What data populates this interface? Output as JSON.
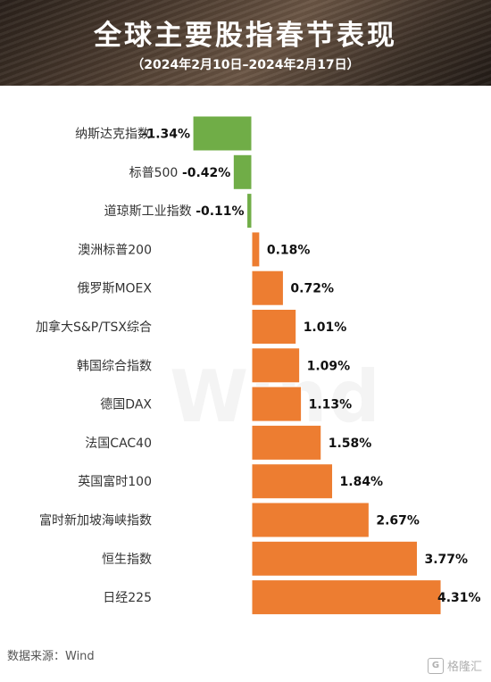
{
  "header": {
    "title": "全球主要股指春节表现",
    "subtitle": "（2024年2月10日–2024年2月17日）"
  },
  "watermark": "Wind",
  "footer": {
    "source": "数据来源：Wind",
    "logo_text": "格隆汇"
  },
  "colors": {
    "positive": "#ED7D31",
    "negative": "#70AD47",
    "positive_border": "#d9d9d9"
  },
  "chart_data": {
    "type": "bar",
    "orientation": "horizontal",
    "categories": [
      "纳斯达克指数",
      "标普500",
      "道琼斯工业指数",
      "澳洲标普200",
      "俄罗斯MOEX",
      "加拿大S&P/TSX综合",
      "韩国综合指数",
      "德国DAX",
      "法国CAC40",
      "英国富时100",
      "富时新加坡海峡指数",
      "恒生指数",
      "日经225"
    ],
    "values": [
      -1.34,
      -0.42,
      -0.11,
      0.18,
      0.72,
      1.01,
      1.09,
      1.13,
      1.58,
      1.84,
      2.67,
      3.77,
      4.31
    ],
    "labels": [
      "-1.34%",
      "-0.42%",
      "-0.11%",
      "0.18%",
      "0.72%",
      "1.01%",
      "1.09%",
      "1.13%",
      "1.58%",
      "1.84%",
      "2.67%",
      "3.77%",
      "4.31%"
    ],
    "unit": "%",
    "xlim": [
      -1.34,
      4.31
    ],
    "grid": false,
    "legend": "none"
  }
}
